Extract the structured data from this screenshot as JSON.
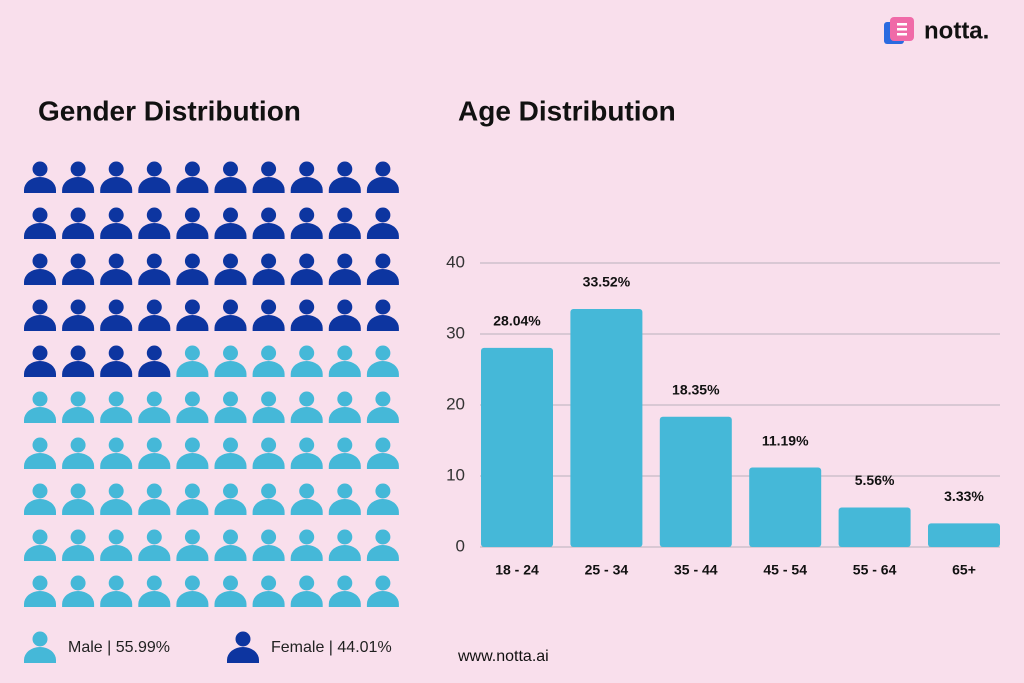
{
  "brand": {
    "logo": "notta.",
    "url": "www.notta.ai"
  },
  "chart_data": [
    {
      "type": "pictogram",
      "title": "Gender Distribution",
      "series": [
        {
          "name": "Male | 55.99%",
          "color": "#45b8d8",
          "values": [
            55.99
          ]
        },
        {
          "name": "Female | 44.01%",
          "color": "#0d35a0",
          "values": [
            44.01
          ]
        }
      ]
    },
    {
      "type": "bar",
      "title": "Age Distribution",
      "categories": [
        "18 - 24",
        "25 - 34",
        "35 - 44",
        "45 - 54",
        "55 - 64",
        "65+"
      ],
      "values": [
        28.04,
        33.52,
        18.35,
        11.19,
        5.56,
        3.33
      ],
      "value_labels": [
        "28.04%",
        "33.52%",
        "18.35%",
        "11.19%",
        "5.56%",
        "3.33%"
      ],
      "color": "#45b8d8",
      "ylim": [
        0,
        40
      ],
      "yticks": [
        0,
        10,
        20,
        30,
        40
      ],
      "grid": true
    }
  ]
}
